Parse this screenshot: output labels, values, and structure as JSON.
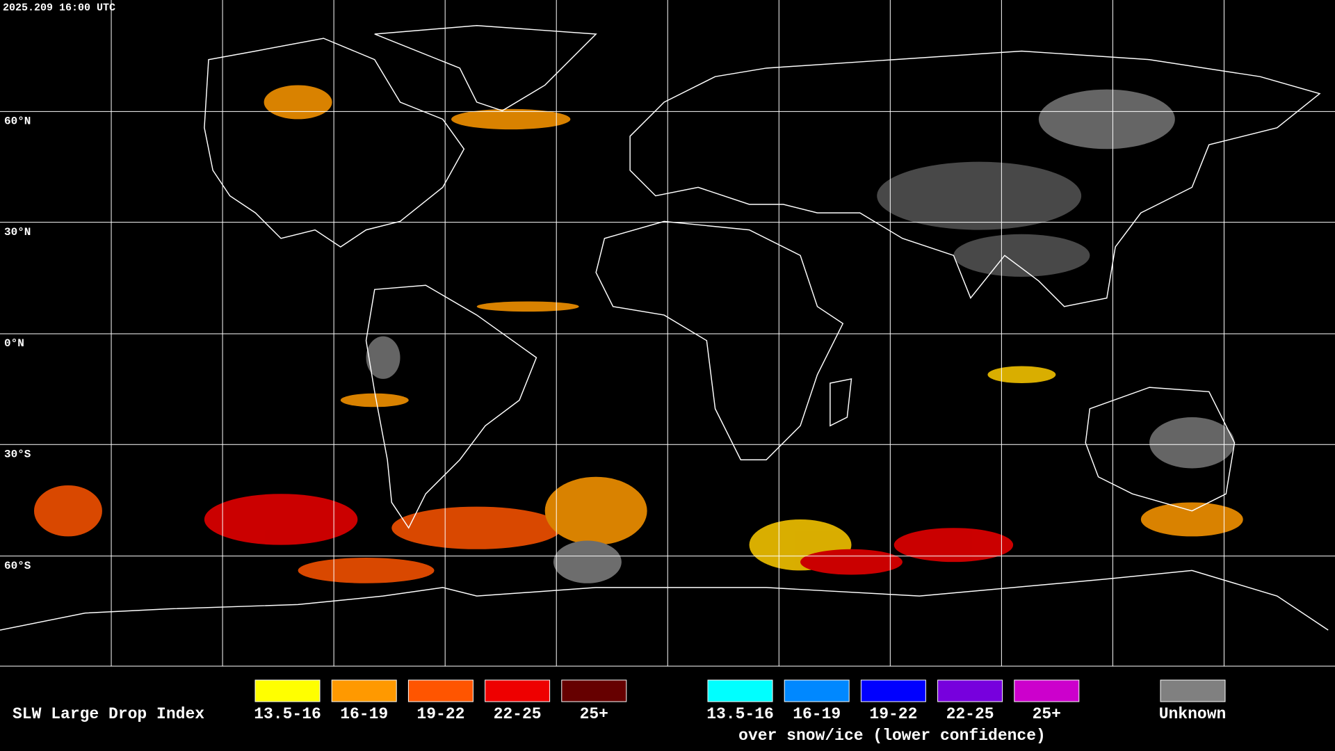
{
  "timestamp": "2025.209 16:00 UTC",
  "latitude_labels": [
    "60°N",
    "30°N",
    "0°N",
    "30°S",
    "60°S"
  ],
  "legend": {
    "title": "SLW Large Drop Index",
    "groups": [
      {
        "items": [
          {
            "label": "13.5-16",
            "color": "#ffff00"
          },
          {
            "label": "16-19",
            "color": "#ff9900"
          },
          {
            "label": "19-22",
            "color": "#ff5500"
          },
          {
            "label": "22-25",
            "color": "#ee0000"
          },
          {
            "label": "25+",
            "color": "#660000"
          }
        ]
      },
      {
        "items": [
          {
            "label": "13.5-16",
            "color": "#00ffff"
          },
          {
            "label": "16-19",
            "color": "#0088ff"
          },
          {
            "label": "19-22",
            "color": "#0000ff"
          },
          {
            "label": "22-25",
            "color": "#7700dd"
          },
          {
            "label": "25+",
            "color": "#cc00cc"
          }
        ],
        "caption": "over snow/ice (lower confidence)"
      }
    ],
    "unknown": {
      "label": "Unknown",
      "color": "#808080"
    }
  }
}
